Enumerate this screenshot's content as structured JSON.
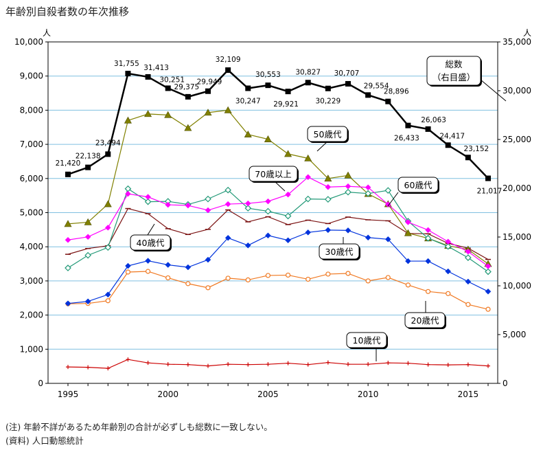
{
  "chart_data": {
    "type": "line",
    "title": "年齢別自殺者数の年次推移",
    "left_axis": {
      "unit": "人",
      "ylim": [
        0,
        10000
      ],
      "ticks": [
        "0",
        "1,000",
        "2,000",
        "3,000",
        "4,000",
        "5,000",
        "6,000",
        "7,000",
        "8,000",
        "9,000",
        "10,000"
      ]
    },
    "right_axis": {
      "unit": "人",
      "ylim": [
        0,
        35000
      ],
      "ticks": [
        "0",
        "5,000",
        "10,000",
        "15,000",
        "20,000",
        "25,000",
        "30,000",
        "35,000"
      ]
    },
    "x_tick_labels": [
      "1995",
      "2000",
      "2005",
      "2010",
      "2015"
    ],
    "x": [
      1995,
      1996,
      1997,
      1998,
      1999,
      2000,
      2001,
      2002,
      2003,
      2004,
      2005,
      2006,
      2007,
      2008,
      2009,
      2010,
      2011,
      2012,
      2013,
      2014,
      2015,
      2016
    ],
    "total_series": {
      "name": "総数",
      "legend_label": "総数\n（右目盛）",
      "color": "#000000",
      "values": [
        21420,
        22138,
        23494,
        31755,
        31413,
        30251,
        29375,
        29949,
        32109,
        30247,
        30553,
        29921,
        30827,
        30229,
        30707,
        29554,
        28896,
        26433,
        26063,
        24417,
        23152,
        21017
      ],
      "labels": [
        "21,420",
        "22,138",
        "23,494",
        "31,755",
        "31,413",
        "30,251",
        "29,375",
        "29,949",
        "32,109",
        "30,247",
        "30,553",
        "29,921",
        "30,827",
        "30,229",
        "30,707",
        "29,554",
        "28,896",
        "26,433",
        "26,063",
        "24,417",
        "23,152",
        "21,017"
      ]
    },
    "series": [
      {
        "name": "10歳代",
        "color": "#cc0000",
        "marker": "plus",
        "values": [
          480,
          470,
          440,
          700,
          600,
          560,
          550,
          510,
          560,
          550,
          560,
          590,
          550,
          610,
          560,
          560,
          600,
          590,
          550,
          540,
          550,
          510
        ]
      },
      {
        "name": "20歳代",
        "color": "#f07820",
        "marker": "circle-open",
        "values": [
          2330,
          2340,
          2420,
          3260,
          3280,
          3090,
          2920,
          2800,
          3080,
          3030,
          3160,
          3170,
          3050,
          3200,
          3220,
          3000,
          3100,
          2880,
          2690,
          2630,
          2310,
          2170
        ]
      },
      {
        "name": "30歳代",
        "color": "#0033dd",
        "marker": "diamond",
        "values": [
          2340,
          2400,
          2600,
          3440,
          3590,
          3470,
          3400,
          3620,
          4260,
          4040,
          4330,
          4190,
          4420,
          4490,
          4480,
          4270,
          4220,
          3580,
          3580,
          3280,
          2980,
          2690
        ]
      },
      {
        "name": "40歳代",
        "color": "#7a1010",
        "marker": "dash",
        "values": [
          3780,
          3950,
          4030,
          5120,
          4970,
          4530,
          4360,
          4510,
          5080,
          4730,
          4880,
          4650,
          4780,
          4680,
          4870,
          4790,
          4760,
          4390,
          4380,
          4100,
          3960,
          3630
        ]
      },
      {
        "name": "50歳代",
        "color": "#808000",
        "marker": "triangle",
        "values": [
          4670,
          4720,
          5250,
          7700,
          7890,
          7860,
          7480,
          7930,
          8000,
          7290,
          7150,
          6720,
          6590,
          6000,
          6090,
          5550,
          5250,
          4400,
          4250,
          4030,
          3920,
          3500
        ]
      },
      {
        "name": "60歳代",
        "color": "#229977",
        "marker": "diamond-open",
        "values": [
          3380,
          3750,
          3980,
          5700,
          5320,
          5330,
          5240,
          5400,
          5660,
          5130,
          5040,
          4900,
          5400,
          5390,
          5600,
          5560,
          5650,
          4750,
          4250,
          4010,
          3680,
          3270
        ]
      },
      {
        "name": "70歳以上",
        "color": "#ff00ff",
        "marker": "diamond",
        "values": [
          4200,
          4290,
          4560,
          5550,
          5460,
          5230,
          5210,
          5070,
          5250,
          5270,
          5330,
          5530,
          6040,
          5750,
          5770,
          5740,
          5240,
          4720,
          4490,
          4150,
          3860,
          3430
        ]
      }
    ]
  },
  "notes": {
    "note1": "(注) 年齢不詳があるため年齢別の合計が必ずしも総数に一致しない。",
    "note2": "(資料) 人口動態統計"
  }
}
